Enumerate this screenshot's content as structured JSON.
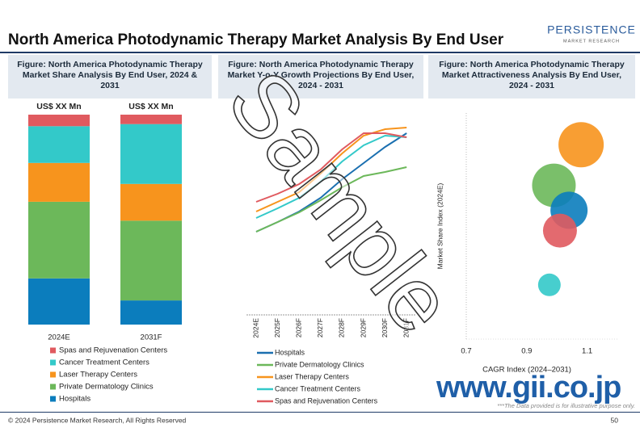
{
  "header": {
    "title": "North America Photodynamic Therapy Market Analysis By End User",
    "logo": "PERSISTENCE",
    "logo_sub": "MARKET RESEARCH"
  },
  "chart_data": [
    {
      "type": "stacked-bar",
      "title_lines": [
        "Figure: North America Photodynamic Therapy",
        "Market Share Analysis By End User, 2024 &",
        "2031"
      ],
      "categories": [
        "2024E",
        "2031F"
      ],
      "bar_labels": [
        "US$ XX Mn",
        "US$ XX Mn"
      ],
      "ylim": [
        0,
        100
      ],
      "series": [
        {
          "name": "Hospitals",
          "color": "#0b7dbd",
          "values": [
            22,
            11.5
          ]
        },
        {
          "name": "Private Dermatology Clinics",
          "color": "#6cb85a",
          "values": [
            36.5,
            38
          ]
        },
        {
          "name": "Laser Therapy Centers",
          "color": "#f7941d",
          "values": [
            18.5,
            17.5
          ]
        },
        {
          "name": "Cancer Treatment Centers",
          "color": "#33c9c9",
          "values": [
            17.5,
            28.5
          ]
        },
        {
          "name": "Spas and Rejuvenation Centers",
          "color": "#e05a5f",
          "values": [
            5.5,
            4.5
          ]
        }
      ]
    },
    {
      "type": "line",
      "title_lines": [
        "Figure: North America Photodynamic Therapy",
        "Market Y-o-Y Growth Projections By End User,",
        "2024 - 2031"
      ],
      "x": [
        "2024E",
        "2025F",
        "2026F",
        "2027F",
        "2028F",
        "2029F",
        "2030F",
        "2031F"
      ],
      "ylim": [
        100,
        250
      ],
      "series": [
        {
          "name": "Hospitals",
          "color": "#1a6fb0",
          "values": [
            113,
            125,
            138,
            155,
            178,
            198,
            218,
            235
          ]
        },
        {
          "name": "Private Dermatology Clinics",
          "color": "#6cb85a",
          "values": [
            113,
            125,
            137,
            152,
            168,
            182,
            187,
            193
          ]
        },
        {
          "name": "Laser Therapy Centers",
          "color": "#f7941d",
          "values": [
            138,
            150,
            162,
            185,
            210,
            232,
            240,
            242
          ]
        },
        {
          "name": "Cancer Treatment Centers",
          "color": "#33c9c9",
          "values": [
            130,
            142,
            155,
            175,
            200,
            220,
            232,
            230
          ]
        },
        {
          "name": "Spas and Rejuvenation Centers",
          "color": "#e05a5f",
          "values": [
            150,
            160,
            172,
            190,
            215,
            235,
            235,
            230
          ]
        }
      ]
    },
    {
      "type": "bubble",
      "title_lines": [
        "Figure: North America Photodynamic Therapy",
        "Market Attractiveness Analysis By End User,",
        "2024 - 2031"
      ],
      "x_label": "CAGR Index (2024–2031)",
      "y_label": "Market Share Index (2024E)",
      "xlim": [
        0.7,
        1.2
      ],
      "xticks": [
        0.7,
        0.9,
        1.1
      ],
      "ylim": [
        0,
        1
      ],
      "points": [
        {
          "color": "#f7941d",
          "x": 1.08,
          "y": 0.86,
          "size": 28
        },
        {
          "color": "#6cb85a",
          "x": 0.99,
          "y": 0.68,
          "size": 27
        },
        {
          "color": "#0b7dbd",
          "x": 1.04,
          "y": 0.57,
          "size": 23
        },
        {
          "color": "#e05a5f",
          "x": 1.01,
          "y": 0.48,
          "size": 21
        },
        {
          "color": "#33c9c9",
          "x": 0.975,
          "y": 0.24,
          "size": 14
        }
      ]
    }
  ],
  "watermark": "Sample",
  "site": "www.gii.co.jp",
  "note": "***The Data provided is for illustrative purpose only.",
  "footer": "© 2024 Persistence Market Research, All Rights Reserved",
  "page": "50"
}
